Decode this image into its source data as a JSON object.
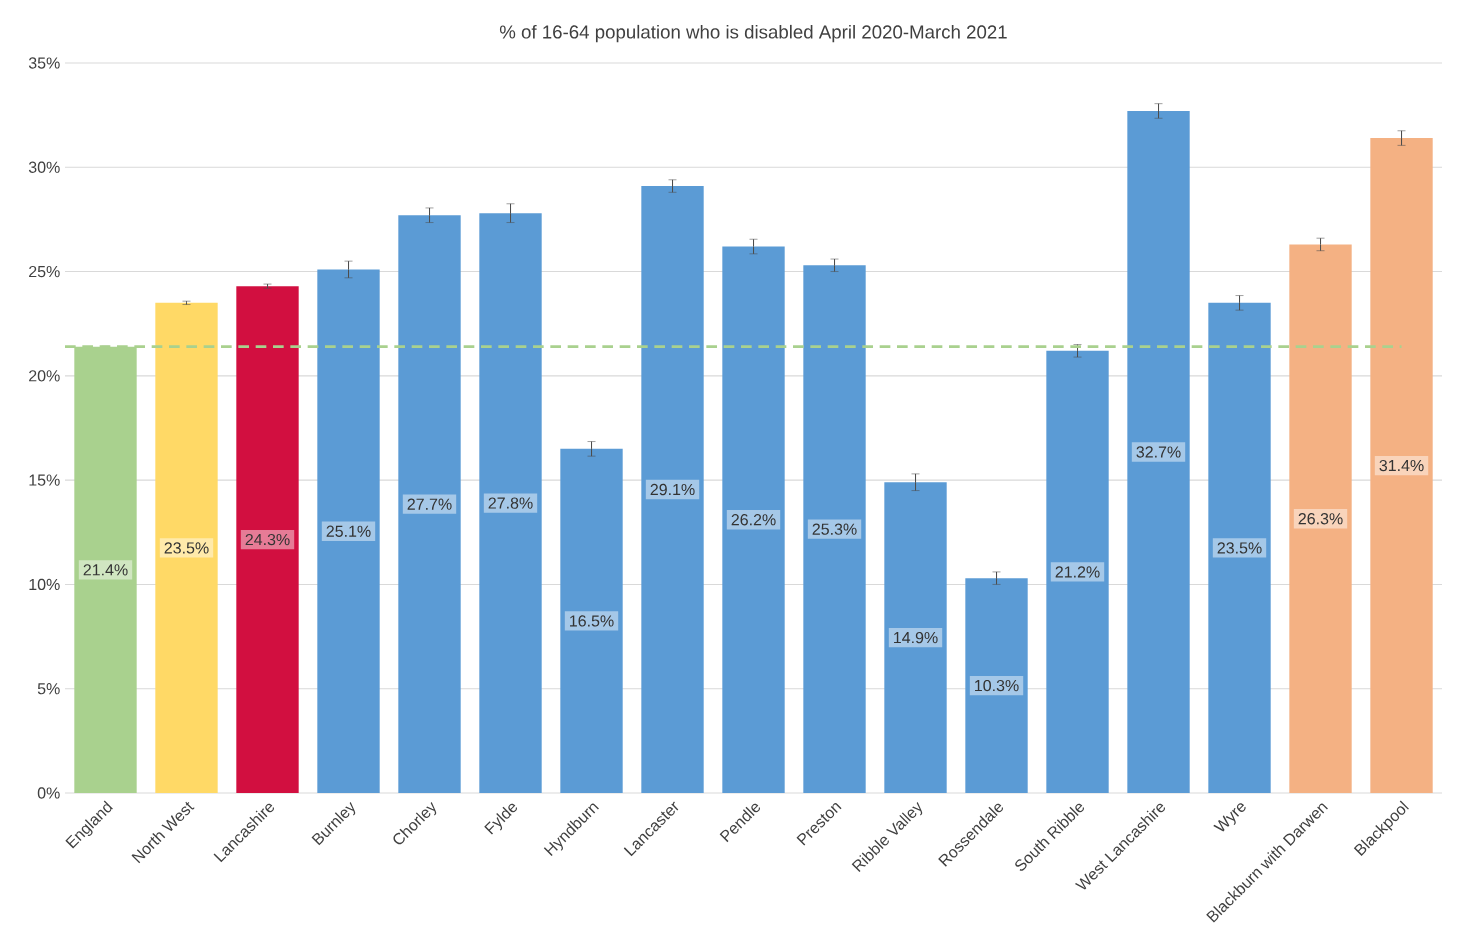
{
  "chart_data": {
    "type": "bar",
    "title": "% of 16-64 population who is disabled April 2020-March 2021",
    "categories": [
      "England",
      "North West",
      "Lancashire",
      "Burnley",
      "Chorley",
      "Fylde",
      "Hyndburn",
      "Lancaster",
      "Pendle",
      "Preston",
      "Ribble Valley",
      "Rossendale",
      "South Ribble",
      "West Lancashire",
      "Wyre",
      "Blackburn with Darwen",
      "Blackpool"
    ],
    "values": [
      21.4,
      23.5,
      24.3,
      25.1,
      27.7,
      27.8,
      16.5,
      29.1,
      26.2,
      25.3,
      14.9,
      10.3,
      21.2,
      32.7,
      23.5,
      26.3,
      31.4
    ],
    "value_labels": [
      "21.4%",
      "23.5%",
      "24.3%",
      "25.1%",
      "27.7%",
      "27.8%",
      "16.5%",
      "29.1%",
      "26.2%",
      "25.3%",
      "14.9%",
      "10.3%",
      "21.2%",
      "32.7%",
      "23.5%",
      "26.3%",
      "31.4%"
    ],
    "errors": [
      0.02,
      0.08,
      0.1,
      0.4,
      0.35,
      0.45,
      0.35,
      0.3,
      0.35,
      0.3,
      0.4,
      0.3,
      0.3,
      0.35,
      0.35,
      0.3,
      0.35
    ],
    "colors": [
      "#a9d18e",
      "#ffd966",
      "#d20f40",
      "#5b9bd5",
      "#5b9bd5",
      "#5b9bd5",
      "#5b9bd5",
      "#5b9bd5",
      "#5b9bd5",
      "#5b9bd5",
      "#5b9bd5",
      "#5b9bd5",
      "#5b9bd5",
      "#5b9bd5",
      "#5b9bd5",
      "#f4b183",
      "#f4b183"
    ],
    "ylim": [
      0,
      35
    ],
    "yticks": [
      {
        "value": 0,
        "label": "0%"
      },
      {
        "value": 5,
        "label": "5%"
      },
      {
        "value": 10,
        "label": "10%"
      },
      {
        "value": 15,
        "label": "15%"
      },
      {
        "value": 20,
        "label": "20%"
      },
      {
        "value": 25,
        "label": "25%"
      },
      {
        "value": 30,
        "label": "30%"
      },
      {
        "value": 35,
        "label": "35%"
      }
    ],
    "ref_lines": [
      {
        "axis": "y",
        "value": 21.4,
        "color": "#a9d18e",
        "line_style": "dashed"
      }
    ],
    "grid": "y"
  }
}
